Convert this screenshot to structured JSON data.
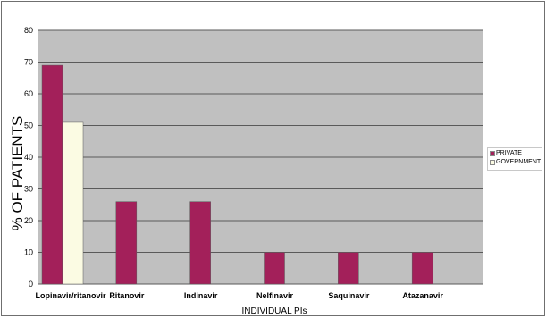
{
  "chart_data": {
    "type": "bar",
    "xlabel": "INDIVIDUAL PIs",
    "ylabel": "% OF PATIENTS",
    "ylim": [
      0,
      80
    ],
    "yticks": [
      0,
      10,
      20,
      30,
      40,
      50,
      60,
      70,
      80
    ],
    "grid": true,
    "legend_position": "right",
    "categories": [
      "Lopinavir/ritanovir",
      "Ritanovir",
      "Indinavir",
      "Nelfinavir",
      "Saquinavir",
      "Atazanavir"
    ],
    "series": [
      {
        "name": "PRIVATE",
        "color": "#a3205a",
        "values": [
          69,
          26,
          26,
          10,
          10,
          10
        ]
      },
      {
        "name": "GOVERNMENT",
        "color": "#fbfbe3",
        "values": [
          51,
          0,
          0,
          0,
          0,
          0
        ]
      }
    ],
    "colors": {
      "plot_background": "#c0c0c0",
      "gridline": "#5a5a5a",
      "frame": "#6f6f6f"
    }
  }
}
